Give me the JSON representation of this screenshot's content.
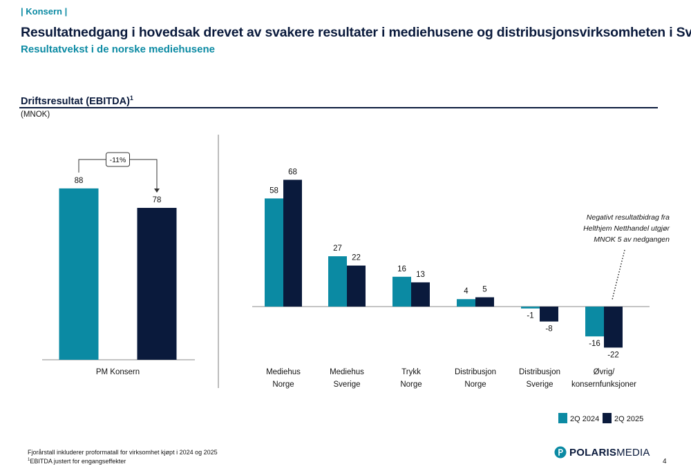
{
  "header": {
    "section_tag": "| Konsern |",
    "title": "Resultatnedgang i hovedsak drevet av svakere resultater i mediehusene og distribusjonsvirksomheten i Sverige",
    "subtitle": "Resultatvekst i de norske mediehusene"
  },
  "colors": {
    "series_2024": "#0b8aa3",
    "series_2025": "#0a1a3c",
    "accent": "#0b8aa3",
    "text_dark": "#0a1a3c"
  },
  "chart_data": [
    {
      "type": "bar",
      "title": "Driftsresultat (EBITDA)",
      "title_footnote_mark": "1",
      "unit": "(MNOK)",
      "categories": [
        "PM Konsern"
      ],
      "series": [
        {
          "name": "2Q 2024",
          "values": [
            88
          ]
        },
        {
          "name": "2Q 2025",
          "values": [
            78
          ]
        }
      ],
      "data_labels": [
        "88",
        "78"
      ],
      "annotation": {
        "text": "-11%",
        "from_series": 0,
        "to_series": 1
      },
      "ylim": [
        0,
        100
      ]
    },
    {
      "type": "bar",
      "categories": [
        [
          "Mediehus",
          "Norge"
        ],
        [
          "Mediehus",
          "Sverige"
        ],
        [
          "Trykk",
          "Norge"
        ],
        [
          "Distribusjon",
          "Norge"
        ],
        [
          "Distribusjon",
          "Sverige"
        ],
        [
          "Øvrig/",
          "konsernfunksjoner"
        ]
      ],
      "series": [
        {
          "name": "2Q 2024",
          "values": [
            58,
            27,
            16,
            4,
            -1,
            -16
          ]
        },
        {
          "name": "2Q 2025",
          "values": [
            68,
            22,
            13,
            5,
            -8,
            -22
          ]
        }
      ],
      "annotation": {
        "lines": [
          "Negativt resultatbidrag fra",
          "Helthjem Netthandel utgjør",
          "MNOK 5 av nedgangen"
        ],
        "category_index": 5
      },
      "ylim": [
        -30,
        80
      ],
      "legend": {
        "placement": "bottom-right",
        "items": [
          "2Q 2024",
          "2Q 2025"
        ]
      }
    }
  ],
  "footer": {
    "footnote_1": "Fjorårstall inkluderer proformatall for virksomhet kjøpt i 2024 og 2025",
    "footnote_2_mark": "1",
    "footnote_2": "EBITDA justert for engangseffekter",
    "logo": {
      "name_part1": "POLARIS",
      "name_part2": "MEDIA",
      "icon": "polaris-p-icon"
    },
    "page_number": "4"
  }
}
